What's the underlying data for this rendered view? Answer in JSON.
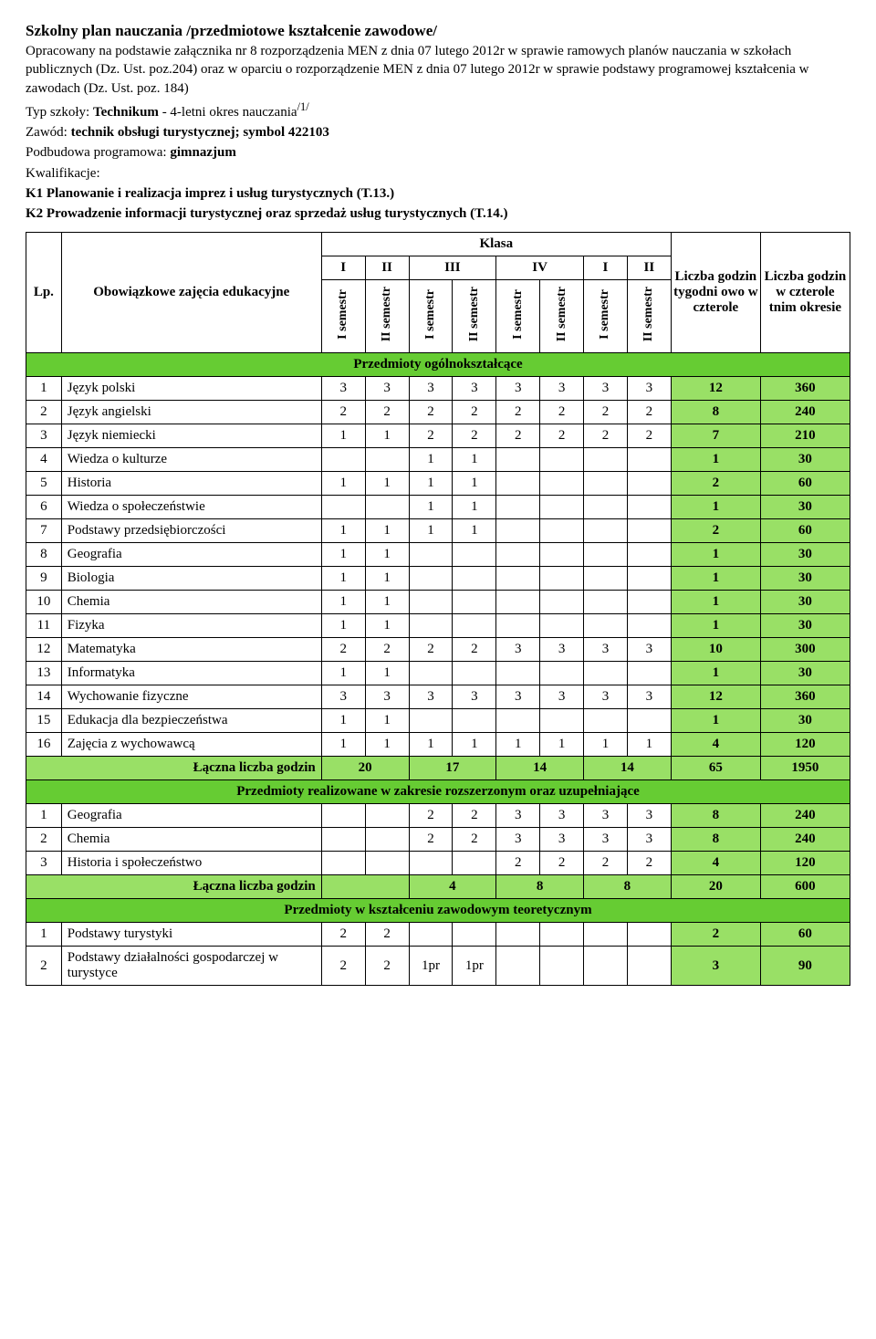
{
  "colors": {
    "section_bg": "#66cc33",
    "summary_bg": "#99e066",
    "total_col_bg": "#99e066"
  },
  "title": "Szkolny plan nauczania /przedmiotowe kształcenie zawodowe/",
  "intro": {
    "p1": "Opracowany na podstawie załącznika nr 8 rozporządzenia MEN z dnia 07 lutego 2012r w sprawie ramowych planów nauczania w szkołach publicznych (Dz. Ust. poz.204) oraz w oparciu o rozporządzenie MEN z dnia 07 lutego 2012r w sprawie podstawy programowej kształcenia w zawodach (Dz. Ust. poz. 184)",
    "typ_prefix": "Typ szkoły: ",
    "typ_bold": "Technikum",
    "typ_rest": " - 4-letni okres nauczania",
    "typ_sup": "/1/",
    "zawod_prefix": "Zawód: ",
    "zawod_bold": "technik obsługi turystycznej; symbol 422103",
    "podbudowa_prefix": "Podbudowa programowa: ",
    "podbudowa_bold": "gimnazjum",
    "kwal": "Kwalifikacje:",
    "k1": "K1 Planowanie i realizacja imprez i usług turystycznych (T.13.)",
    "k2": "K2 Prowadzenie informacji turystycznej oraz sprzedaż usług turystycznych (T.14.)"
  },
  "headers": {
    "lp": "Lp.",
    "subject": "Obowiązkowe zajęcia edukacyjne",
    "klasa": "Klasa",
    "weekly": "Liczba godzin tygodni owo w czterole",
    "total": "Liczba godzin w czterole tnim okresie",
    "classes": [
      "I",
      "II",
      "III",
      "IV",
      "I",
      "II"
    ],
    "sem1": "I semestr",
    "sem2": "II semestr"
  },
  "sections": [
    {
      "title": "Przedmioty ogólnokształcące",
      "rows": [
        {
          "lp": "1",
          "name": "Język polski",
          "v": [
            "3",
            "3",
            "3",
            "3",
            "3",
            "3",
            "3",
            "3"
          ],
          "wk": "12",
          "tot": "360"
        },
        {
          "lp": "2",
          "name": "Język angielski",
          "v": [
            "2",
            "2",
            "2",
            "2",
            "2",
            "2",
            "2",
            "2"
          ],
          "wk": "8",
          "tot": "240"
        },
        {
          "lp": "3",
          "name": "Język niemiecki",
          "v": [
            "1",
            "1",
            "2",
            "2",
            "2",
            "2",
            "2",
            "2"
          ],
          "wk": "7",
          "tot": "210"
        },
        {
          "lp": "4",
          "name": "Wiedza o kulturze",
          "v": [
            "",
            "",
            "1",
            "1",
            "",
            "",
            "",
            ""
          ],
          "wk": "1",
          "tot": "30"
        },
        {
          "lp": "5",
          "name": "Historia",
          "v": [
            "1",
            "1",
            "1",
            "1",
            "",
            "",
            "",
            ""
          ],
          "wk": "2",
          "tot": "60"
        },
        {
          "lp": "6",
          "name": "Wiedza o społeczeństwie",
          "v": [
            "",
            "",
            "1",
            "1",
            "",
            "",
            "",
            ""
          ],
          "wk": "1",
          "tot": "30"
        },
        {
          "lp": "7",
          "name": "Podstawy przedsiębiorczości",
          "v": [
            "1",
            "1",
            "1",
            "1",
            "",
            "",
            "",
            ""
          ],
          "wk": "2",
          "tot": "60"
        },
        {
          "lp": "8",
          "name": "Geografia",
          "v": [
            "1",
            "1",
            "",
            "",
            "",
            "",
            "",
            ""
          ],
          "wk": "1",
          "tot": "30"
        },
        {
          "lp": "9",
          "name": "Biologia",
          "v": [
            "1",
            "1",
            "",
            "",
            "",
            "",
            "",
            ""
          ],
          "wk": "1",
          "tot": "30"
        },
        {
          "lp": "10",
          "name": "Chemia",
          "v": [
            "1",
            "1",
            "",
            "",
            "",
            "",
            "",
            ""
          ],
          "wk": "1",
          "tot": "30"
        },
        {
          "lp": "11",
          "name": "Fizyka",
          "v": [
            "1",
            "1",
            "",
            "",
            "",
            "",
            "",
            ""
          ],
          "wk": "1",
          "tot": "30"
        },
        {
          "lp": "12",
          "name": "Matematyka",
          "v": [
            "2",
            "2",
            "2",
            "2",
            "3",
            "3",
            "3",
            "3"
          ],
          "wk": "10",
          "tot": "300"
        },
        {
          "lp": "13",
          "name": "Informatyka",
          "v": [
            "1",
            "1",
            "",
            "",
            "",
            "",
            "",
            ""
          ],
          "wk": "1",
          "tot": "30"
        },
        {
          "lp": "14",
          "name": "Wychowanie fizyczne",
          "v": [
            "3",
            "3",
            "3",
            "3",
            "3",
            "3",
            "3",
            "3"
          ],
          "wk": "12",
          "tot": "360"
        },
        {
          "lp": "15",
          "name": "Edukacja dla bezpieczeństwa",
          "v": [
            "1",
            "1",
            "",
            "",
            "",
            "",
            "",
            ""
          ],
          "wk": "1",
          "tot": "30"
        },
        {
          "lp": "16",
          "name": "Zajęcia z wychowawcą",
          "v": [
            "1",
            "1",
            "1",
            "1",
            "1",
            "1",
            "1",
            "1"
          ],
          "wk": "4",
          "tot": "120"
        }
      ],
      "summary": {
        "label": "Łączna liczba godzin",
        "pairs": [
          "20",
          "17",
          "14",
          "14"
        ],
        "wk": "65",
        "tot": "1950"
      }
    },
    {
      "title": "Przedmioty realizowane w zakresie rozszerzonym oraz uzupełniające",
      "rows": [
        {
          "lp": "1",
          "name": "Geografia",
          "v": [
            "",
            "",
            "2",
            "2",
            "3",
            "3",
            "3",
            "3"
          ],
          "wk": "8",
          "tot": "240"
        },
        {
          "lp": "2",
          "name": "Chemia",
          "v": [
            "",
            "",
            "2",
            "2",
            "3",
            "3",
            "3",
            "3"
          ],
          "wk": "8",
          "tot": "240"
        },
        {
          "lp": "3",
          "name": "Historia i społeczeństwo",
          "v": [
            "",
            "",
            "",
            "",
            "2",
            "2",
            "2",
            "2"
          ],
          "wk": "4",
          "tot": "120"
        }
      ],
      "summary": {
        "label": "Łączna liczba godzin",
        "pairs": [
          "",
          "4",
          "8",
          "8"
        ],
        "wk": "20",
        "tot": "600"
      }
    },
    {
      "title": "Przedmioty w kształceniu zawodowym teoretycznym",
      "rows": [
        {
          "lp": "1",
          "name": "Podstawy turystyki",
          "v": [
            "2",
            "2",
            "",
            "",
            "",
            "",
            "",
            ""
          ],
          "wk": "2",
          "tot": "60"
        },
        {
          "lp": "2",
          "name": "Podstawy działalności gospodarczej w turystyce",
          "v": [
            "2",
            "2",
            "1pr",
            "1pr",
            "",
            "",
            "",
            ""
          ],
          "wk": "3",
          "tot": "90"
        }
      ]
    }
  ]
}
